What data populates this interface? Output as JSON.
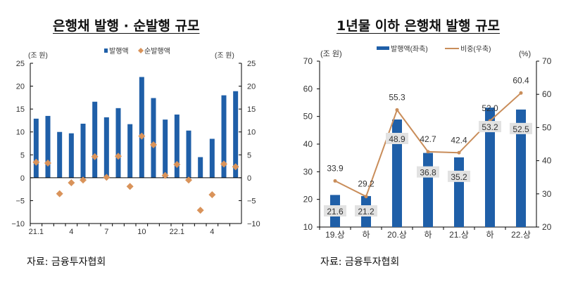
{
  "colors": {
    "bar": "#1f5fa8",
    "marker": "#d9935a",
    "line": "#c98d5a",
    "label_bg": "#e2e2e2"
  },
  "chart_data": [
    {
      "type": "bar+scatter",
      "title": "은행채 발행 · 순발행 규모",
      "unit_left": "(조 원)",
      "unit_right": "(조 원)",
      "x": [
        "21.1",
        "2",
        "3",
        "4",
        "5",
        "6",
        "7",
        "8",
        "9",
        "10",
        "11",
        "12",
        "22.1",
        "2",
        "3",
        "4",
        "5",
        "6"
      ],
      "xtick_labels": {
        "0": "21.1",
        "3": "4",
        "6": "7",
        "9": "10",
        "12": "22.1",
        "15": "4"
      },
      "ylim": [
        -10,
        25
      ],
      "yticks": [
        -10,
        -5,
        0,
        5,
        10,
        15,
        20,
        25
      ],
      "series": [
        {
          "name": "발행액",
          "type": "bar",
          "values": [
            12.9,
            13.5,
            10.0,
            9.7,
            11.8,
            16.6,
            13.2,
            15.2,
            11.7,
            22.0,
            17.4,
            12.7,
            13.8,
            10.3,
            4.5,
            8.5,
            18.0,
            18.9
          ]
        },
        {
          "name": "순발행액",
          "type": "scatter",
          "values": [
            3.4,
            3.2,
            -3.5,
            -1.1,
            -0.5,
            4.6,
            0.1,
            4.7,
            -1.9,
            9.1,
            7.2,
            0.5,
            2.9,
            -0.5,
            -7.1,
            -3.7,
            3.0,
            2.4
          ]
        }
      ],
      "legend": "top",
      "source": "자료: 금융투자협회"
    },
    {
      "type": "bar+line",
      "title": "1년물 이하 은행채 발행 규모",
      "unit_left": "(조 원)",
      "unit_right": "(%)",
      "categories": [
        "19.상",
        "하",
        "20.상",
        "하",
        "21.상",
        "하",
        "22.상"
      ],
      "ylim": [
        10,
        70
      ],
      "yticks": [
        10,
        20,
        30,
        40,
        50,
        60,
        70
      ],
      "y2lim": [
        20,
        70
      ],
      "y2ticks": [
        20,
        30,
        40,
        50,
        60,
        70
      ],
      "series": [
        {
          "name": "발행액(좌축)",
          "type": "bar",
          "values": [
            21.6,
            21.2,
            48.9,
            36.8,
            35.2,
            53.2,
            52.5
          ]
        },
        {
          "name": "비중(우축)",
          "type": "line",
          "values": [
            33.9,
            29.2,
            55.3,
            42.7,
            42.4,
            52.0,
            60.4
          ]
        }
      ],
      "legend": "top",
      "source": "자료: 금융투자협회"
    }
  ]
}
